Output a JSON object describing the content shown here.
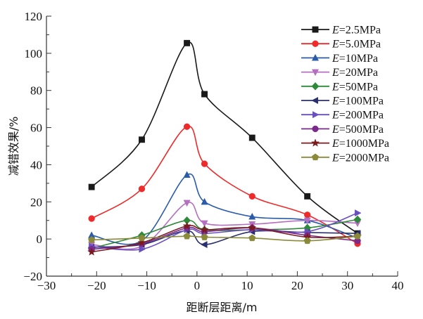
{
  "chart_data": {
    "type": "line",
    "title": "",
    "xlabel": "距断层距离/m",
    "ylabel": "减错效果/%",
    "xlim": [
      -30,
      40
    ],
    "ylim": [
      -20,
      120
    ],
    "xticks": [
      -30,
      -20,
      -10,
      0,
      10,
      20,
      30,
      40
    ],
    "yticks": [
      -20,
      0,
      20,
      40,
      60,
      80,
      100,
      120
    ],
    "grid": false,
    "legend_position": "top-right",
    "smooth": true,
    "x": [
      -21,
      -11,
      -2,
      1.5,
      11,
      22,
      32
    ],
    "series": [
      {
        "name": "E=2.5MPa",
        "prefix": "E",
        "suffix": "=2.5MPa",
        "color": "#1a1a1a",
        "marker": "square",
        "values": [
          28,
          53.5,
          105.5,
          78,
          54.5,
          23,
          3
        ]
      },
      {
        "name": "E=5.0MPa",
        "prefix": "E",
        "suffix": "=5.0MPa",
        "color": "#ee2a2a",
        "marker": "circle",
        "values": [
          11,
          27,
          60.5,
          40.5,
          23,
          13,
          -2.5
        ]
      },
      {
        "name": "E=10MPa",
        "prefix": "E",
        "suffix": "=10MPa",
        "color": "#2a5caa",
        "marker": "triangle-up",
        "values": [
          2,
          -1,
          34.5,
          20,
          12,
          10,
          0.5
        ]
      },
      {
        "name": "E=20MPa",
        "prefix": "E",
        "suffix": "=20MPa",
        "color": "#b56ec0",
        "marker": "triangle-down",
        "values": [
          -3,
          -4,
          19.5,
          8.5,
          8,
          10,
          8.5
        ]
      },
      {
        "name": "E=50MPa",
        "prefix": "E",
        "suffix": "=50MPa",
        "color": "#2e8a3a",
        "marker": "diamond",
        "values": [
          -5,
          2,
          10,
          5,
          5,
          6,
          10.5
        ]
      },
      {
        "name": "E=100MPa",
        "prefix": "E",
        "suffix": "=100MPa",
        "color": "#2a2f6e",
        "marker": "triangle-left",
        "values": [
          -4.5,
          -3,
          4.5,
          -3,
          4,
          3.5,
          3
        ]
      },
      {
        "name": "E=200MPa",
        "prefix": "E",
        "suffix": "=200MPa",
        "color": "#6a4fc0",
        "marker": "triangle-right",
        "values": [
          -4,
          -5.5,
          5,
          3,
          5,
          4,
          14
        ]
      },
      {
        "name": "E=500MPa",
        "prefix": "E",
        "suffix": "=500MPa",
        "color": "#7b2a8c",
        "marker": "circle",
        "values": [
          -5.5,
          -2.5,
          6,
          4,
          6,
          2,
          -1
        ]
      },
      {
        "name": "E=1000MPa",
        "prefix": "E",
        "suffix": "=1000MPa",
        "color": "#7a1a1e",
        "marker": "star",
        "values": [
          -7,
          -2,
          7,
          5,
          6,
          1,
          1.5
        ]
      },
      {
        "name": "E=2000MPa",
        "prefix": "E",
        "suffix": "=2000MPa",
        "color": "#8a8a3a",
        "marker": "pentagon",
        "values": [
          -0.5,
          0.5,
          1.5,
          1,
          0.5,
          -1,
          1.5
        ]
      }
    ]
  }
}
